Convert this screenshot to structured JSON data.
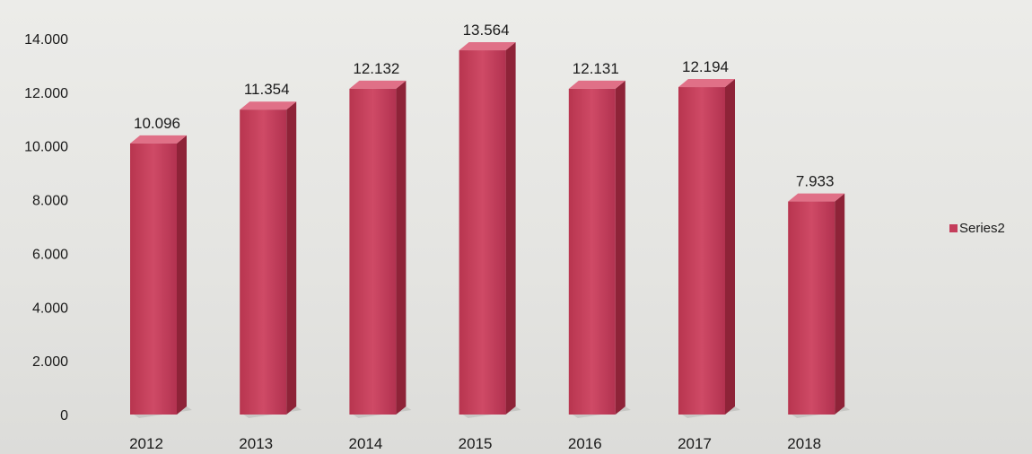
{
  "chart_data": {
    "type": "bar",
    "categories": [
      "2012",
      "2013",
      "2014",
      "2015",
      "2016",
      "2017",
      "2018"
    ],
    "series": [
      {
        "name": "Series2",
        "values": [
          10096,
          11354,
          12132,
          13564,
          12131,
          12194,
          7933
        ],
        "value_labels": [
          "10.096",
          "11.354",
          "12.132",
          "13.564",
          "12.131",
          "12.194",
          "7.933"
        ],
        "color": "#c43d5b"
      }
    ],
    "ylim": [
      0,
      14000
    ],
    "yticks": [
      0,
      2000,
      4000,
      6000,
      8000,
      10000,
      12000,
      14000
    ],
    "ytick_labels": [
      "0",
      "2.000",
      "4.000",
      "6.000",
      "8.000",
      "10.000",
      "12.000",
      "14.000"
    ],
    "grid": false,
    "legend": "right",
    "style": "3d-bar"
  }
}
